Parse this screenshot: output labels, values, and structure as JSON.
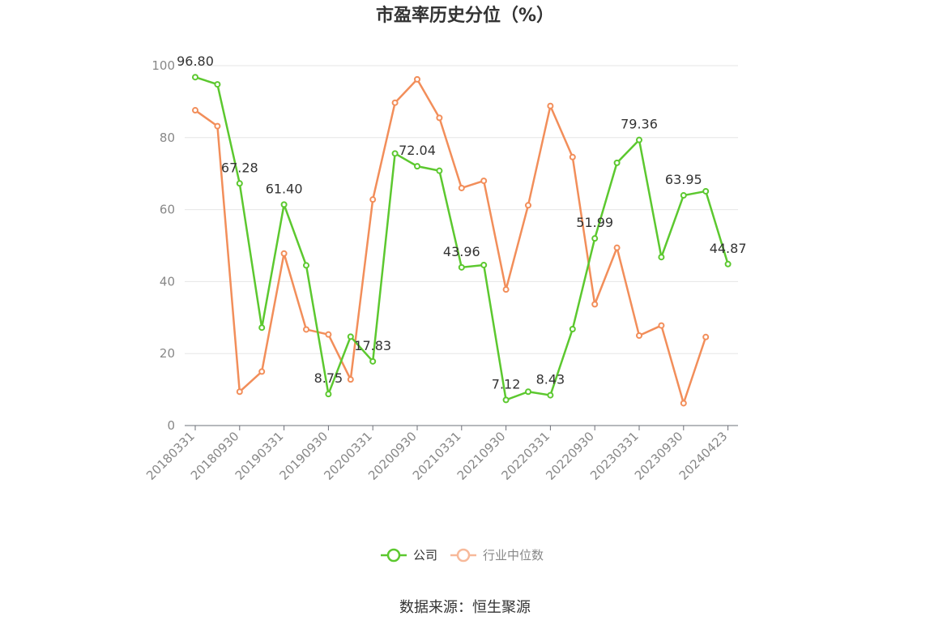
{
  "chart_data": {
    "type": "line",
    "title": "市盈率历史分位（%）",
    "source": "数据来源：恒生聚源",
    "ylim": [
      0,
      100
    ],
    "yticks": [
      0,
      20,
      40,
      60,
      80,
      100
    ],
    "xtick_labels": [
      "20180331",
      "20180930",
      "20190331",
      "20190930",
      "20200331",
      "20200930",
      "20210331",
      "20210930",
      "20220331",
      "20220930",
      "20230331",
      "20230930",
      "20240423"
    ],
    "xtick_positions": [
      0,
      2,
      4,
      6,
      8,
      10,
      12,
      14,
      16,
      18,
      20,
      22,
      24
    ],
    "x": [
      "20180331",
      "20180630",
      "20180930",
      "20181231",
      "20190331",
      "20190630",
      "20190930",
      "20191231",
      "20200331",
      "20200630",
      "20200930",
      "20201231",
      "20210331",
      "20210630",
      "20210930",
      "20211231",
      "20220331",
      "20220630",
      "20220930",
      "20221231",
      "20230331",
      "20230630",
      "20230930",
      "20231231",
      "20240423"
    ],
    "grid": true,
    "legend_position": "bottom",
    "series": [
      {
        "name": "公司",
        "color": "#5cc82f",
        "values": [
          96.8,
          94.8,
          67.28,
          27.2,
          61.4,
          44.5,
          8.75,
          24.7,
          17.83,
          75.6,
          72.04,
          70.8,
          43.96,
          44.6,
          7.12,
          9.4,
          8.43,
          26.8,
          51.99,
          73.0,
          79.36,
          46.8,
          63.95,
          65.1,
          44.87
        ],
        "labels": {
          "0": "96.80",
          "2": "67.28",
          "4": "61.40",
          "6": "8.75",
          "8": "17.83",
          "10": "72.04",
          "12": "43.96",
          "14": "7.12",
          "16": "8.43",
          "18": "51.99",
          "20": "79.36",
          "22": "63.95",
          "24": "44.87"
        }
      },
      {
        "name": "行业中位数",
        "color": "#f28e5a",
        "values": [
          87.6,
          83.2,
          9.4,
          15.0,
          47.8,
          26.7,
          25.3,
          12.8,
          62.8,
          89.7,
          96.2,
          85.5,
          66.0,
          68.0,
          37.8,
          61.2,
          88.8,
          74.6,
          33.7,
          49.4,
          25.0,
          27.8,
          6.2,
          24.6,
          null
        ],
        "labels": {}
      }
    ]
  }
}
